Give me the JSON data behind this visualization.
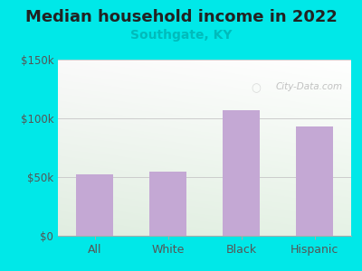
{
  "categories": [
    "All",
    "White",
    "Black",
    "Hispanic"
  ],
  "values": [
    52000,
    55000,
    107000,
    93000
  ],
  "bar_color": "#c4a8d4",
  "title": "Median household income in 2022",
  "subtitle": "Southgate, KY",
  "subtitle_color": "#00bbbb",
  "title_color": "#222222",
  "background_color": "#00e8e8",
  "ylim": [
    0,
    150000
  ],
  "yticks": [
    0,
    50000,
    100000,
    150000
  ],
  "ytick_labels": [
    "$0",
    "$50k",
    "$100k",
    "$150k"
  ],
  "watermark": "City-Data.com",
  "title_fontsize": 13,
  "subtitle_fontsize": 10,
  "tick_label_fontsize": 8.5,
  "xlabel_fontsize": 9,
  "plot_bg_gradient_top": "#f0f8f0",
  "plot_bg_gradient_bottom": "#e8f4e8",
  "plot_bg_upper_right": "#f8f8f8"
}
